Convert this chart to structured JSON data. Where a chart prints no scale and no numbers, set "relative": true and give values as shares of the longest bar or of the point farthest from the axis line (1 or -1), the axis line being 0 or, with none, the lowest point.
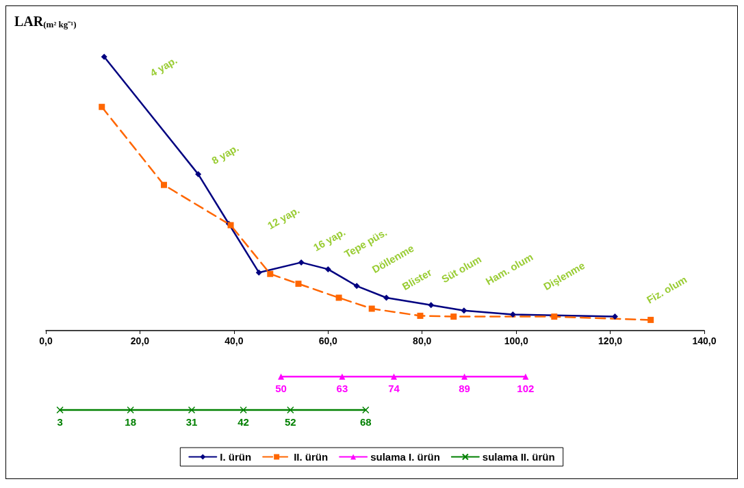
{
  "chart_data": {
    "type": "line",
    "ylabel": "LAR$_{(m² kg⁻¹)}$",
    "relative": true,
    "xlim": [
      0,
      140
    ],
    "xticks": [
      {
        "value": 0,
        "label": "0,0"
      },
      {
        "value": 20,
        "label": "20,0"
      },
      {
        "value": 40,
        "label": "40,0"
      },
      {
        "value": 60,
        "label": "60,0"
      },
      {
        "value": 80,
        "label": "80,0"
      },
      {
        "value": 100,
        "label": "100,0"
      },
      {
        "value": 120,
        "label": "120,0"
      },
      {
        "value": 140,
        "label": "140,0"
      }
    ],
    "grid": false,
    "legend": "bottom",
    "series": [
      {
        "name": "I. ürün",
        "color": "#000080",
        "marker": "diamond",
        "line_style": "solid",
        "x": [
          12.4,
          32.4,
          38.9,
          45.3,
          54.3,
          60,
          66.1,
          72.4,
          81.9,
          88.9,
          99.3,
          121
        ],
        "values": [
          1.0,
          0.571,
          0.39,
          0.212,
          0.249,
          0.224,
          0.163,
          0.12,
          0.093,
          0.073,
          0.059,
          0.051
        ]
      },
      {
        "name": "II. ürün",
        "color": "#ff6600",
        "marker": "square",
        "line_style": "dashed",
        "x": [
          11.9,
          25.1,
          39.3,
          47.7,
          53.7,
          62.3,
          69.3,
          79.6,
          86.7,
          108.1,
          128.6
        ],
        "values": [
          0.817,
          0.532,
          0.385,
          0.207,
          0.171,
          0.12,
          0.08,
          0.054,
          0.051,
          0.051,
          0.039
        ]
      },
      {
        "name": "sulama I. ürün",
        "color": "#ff00ff",
        "marker": "triangle",
        "line_style": "solid",
        "x": [
          50,
          63,
          74,
          89,
          102
        ],
        "values": [
          -0.168,
          -0.168,
          -0.168,
          -0.168,
          -0.168
        ]
      },
      {
        "name": "sulama II. ürün",
        "color": "#008000",
        "marker": "cross",
        "line_style": "solid",
        "x": [
          3,
          18,
          31,
          42,
          52,
          68
        ],
        "values": [
          -0.29,
          -0.29,
          -0.29,
          -0.29,
          -0.29,
          -0.29
        ]
      }
    ],
    "annotations": [
      "4 yap.",
      "8 yap.",
      "12 yap.",
      "16 yap.",
      "Tepe püs.",
      "Döllenme",
      "Blister",
      "Süt olum",
      "Ham. olum",
      "Dişlenme",
      "Fiz. olum",
      {
        "text": "50",
        "x": 50,
        "y": -0.168
      },
      {
        "text": "63",
        "x": 63,
        "y": -0.168
      },
      {
        "text": "74",
        "x": 74,
        "y": -0.168
      },
      {
        "text": "89",
        "x": 89,
        "y": -0.168
      },
      {
        "text": "102",
        "x": 102,
        "y": -0.168
      },
      {
        "text": "3",
        "x": 3,
        "y": -0.29
      },
      {
        "text": "18",
        "x": 18,
        "y": -0.29
      },
      {
        "text": "31",
        "x": 31,
        "y": -0.29
      },
      {
        "text": "42",
        "x": 42,
        "y": -0.29
      },
      {
        "text": "52",
        "x": 52,
        "y": -0.29
      },
      {
        "text": "68",
        "x": 68,
        "y": -0.29
      }
    ]
  }
}
